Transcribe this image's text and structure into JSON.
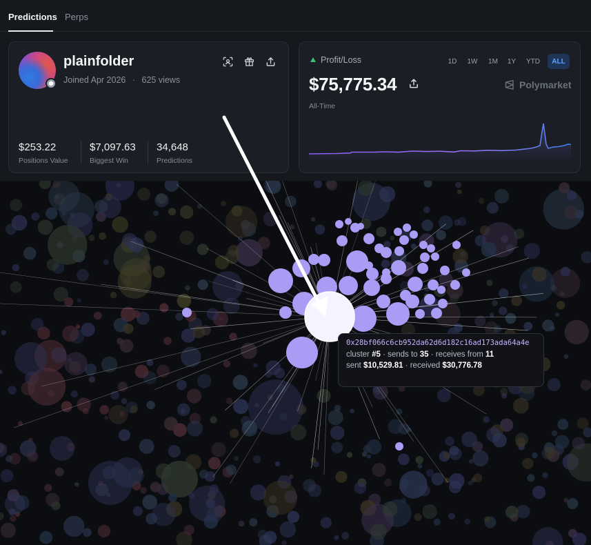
{
  "tabs": [
    {
      "label": "Predictions",
      "active": true
    },
    {
      "label": "Perps",
      "active": false
    }
  ],
  "profile": {
    "username": "plainfolder",
    "joined": "Joined Apr 2026",
    "views": "625 views",
    "actions": [
      "scan-icon",
      "gift-icon",
      "share-icon"
    ],
    "stats": [
      {
        "value": "$253.22",
        "label": "Positions Value"
      },
      {
        "value": "$7,097.63",
        "label": "Biggest Win"
      },
      {
        "value": "34,648",
        "label": "Predictions"
      }
    ]
  },
  "pnl": {
    "label": "Profit/Loss",
    "value": "$75,775.34",
    "period_label": "All-Time",
    "brand": "Polymarket",
    "ranges": [
      "1D",
      "1W",
      "1M",
      "1Y",
      "YTD",
      "ALL"
    ],
    "active_range": "ALL",
    "accent_color": "#3fbf7a",
    "active_range_color": "#5da2ff"
  },
  "tooltip": {
    "address": "0x28bf066c6cb952da62d6d182c16ad173ada64a4e",
    "cluster_prefix": "cluster ",
    "cluster": "#5",
    "sends_prefix": " · sends to ",
    "sends": "35",
    "receives_prefix": " · receives from ",
    "receives": "11",
    "sent_prefix": "sent ",
    "sent": "$10,529.81",
    "received_prefix": " · received ",
    "received": "$30,776.78"
  },
  "graph": {
    "highlight_color": "#a99cf5",
    "selected_color": "#f4f3ff"
  }
}
